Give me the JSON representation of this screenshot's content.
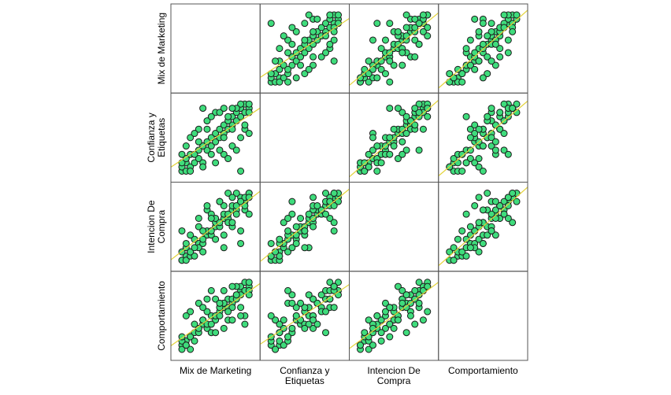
{
  "chart_data": {
    "type": "scatter",
    "subtype": "scatterplot-matrix",
    "title": "",
    "variables": [
      "Mix de Marketing",
      "Confianza y Etiquetas",
      "Intencion De Compra",
      "Comportamiento"
    ],
    "variable_label_lines": [
      [
        "Mix de Marketing"
      ],
      [
        "Confianza y",
        "Etiquetas"
      ],
      [
        "Intencion De",
        "Compra"
      ],
      [
        "Comportamiento"
      ]
    ],
    "range": [
      1,
      5
    ],
    "fit_line": "linear",
    "observations": [
      [
        1.0,
        1.0,
        1.0,
        1.25
      ],
      [
        1.0,
        1.25,
        1.0,
        1.0
      ],
      [
        1.25,
        1.0,
        1.25,
        1.5
      ],
      [
        1.25,
        1.5,
        1.0,
        1.25
      ],
      [
        1.5,
        1.25,
        1.5,
        1.0
      ],
      [
        1.5,
        1.0,
        1.25,
        1.75
      ],
      [
        1.0,
        1.5,
        1.5,
        1.5
      ],
      [
        1.75,
        1.5,
        1.25,
        2.0
      ],
      [
        1.25,
        1.75,
        1.75,
        1.25
      ],
      [
        1.5,
        2.0,
        1.5,
        1.75
      ],
      [
        2.0,
        1.75,
        2.0,
        2.25
      ],
      [
        2.0,
        2.25,
        1.75,
        2.0
      ],
      [
        1.75,
        2.0,
        2.25,
        1.5
      ],
      [
        2.25,
        1.5,
        2.0,
        2.5
      ],
      [
        2.5,
        2.25,
        2.5,
        2.25
      ],
      [
        2.25,
        2.5,
        2.25,
        2.75
      ],
      [
        2.5,
        2.75,
        2.75,
        2.5
      ],
      [
        2.75,
        2.5,
        2.5,
        3.0
      ],
      [
        3.0,
        2.75,
        3.0,
        2.75
      ],
      [
        2.75,
        3.0,
        2.75,
        2.5
      ],
      [
        3.0,
        3.25,
        3.25,
        3.0
      ],
      [
        3.25,
        3.0,
        3.0,
        3.25
      ],
      [
        3.5,
        3.25,
        3.5,
        3.5
      ],
      [
        3.25,
        3.5,
        3.25,
        3.0
      ],
      [
        3.5,
        3.75,
        3.75,
        3.75
      ],
      [
        3.75,
        3.5,
        3.5,
        4.0
      ],
      [
        4.0,
        3.75,
        4.0,
        3.75
      ],
      [
        3.75,
        4.0,
        3.75,
        3.5
      ],
      [
        4.0,
        4.25,
        4.25,
        4.0
      ],
      [
        4.25,
        4.0,
        4.0,
        4.25
      ],
      [
        4.5,
        4.25,
        4.5,
        4.5
      ],
      [
        4.25,
        4.5,
        4.25,
        4.0
      ],
      [
        4.5,
        4.75,
        4.75,
        4.75
      ],
      [
        4.75,
        4.5,
        4.5,
        5.0
      ],
      [
        5.0,
        4.75,
        5.0,
        4.75
      ],
      [
        4.75,
        5.0,
        4.75,
        4.5
      ],
      [
        5.0,
        5.0,
        5.0,
        5.0
      ],
      [
        4.5,
        5.0,
        4.5,
        4.25
      ],
      [
        5.0,
        4.5,
        4.75,
        4.5
      ],
      [
        4.25,
        4.75,
        5.0,
        4.75
      ],
      [
        3.0,
        4.5,
        3.5,
        4.0
      ],
      [
        2.5,
        4.0,
        4.0,
        3.25
      ],
      [
        4.0,
        2.5,
        3.0,
        3.5
      ],
      [
        3.5,
        2.0,
        2.5,
        3.75
      ],
      [
        2.0,
        3.5,
        3.0,
        2.25
      ],
      [
        1.5,
        3.0,
        2.5,
        3.25
      ],
      [
        3.75,
        1.75,
        3.25,
        2.75
      ],
      [
        4.5,
        3.0,
        2.75,
        3.5
      ],
      [
        2.75,
        4.25,
        3.75,
        2.0
      ],
      [
        3.25,
        4.5,
        4.5,
        3.5
      ],
      [
        1.25,
        2.5,
        2.0,
        3.0
      ],
      [
        2.25,
        1.25,
        1.5,
        2.75
      ],
      [
        4.75,
        3.5,
        4.0,
        3.0
      ],
      [
        3.5,
        4.75,
        4.25,
        4.5
      ],
      [
        2.0,
        2.75,
        3.5,
        3.75
      ],
      [
        4.25,
        2.25,
        3.75,
        4.25
      ],
      [
        1.75,
        3.25,
        1.75,
        2.5
      ],
      [
        3.0,
        1.5,
        2.25,
        2.0
      ],
      [
        4.0,
        4.75,
        3.25,
        4.75
      ],
      [
        2.5,
        3.5,
        4.25,
        4.0
      ],
      [
        4.75,
        3.75,
        4.25,
        2.5
      ],
      [
        3.75,
        4.25,
        5.0,
        3.25
      ],
      [
        2.75,
        2.0,
        3.5,
        4.5
      ],
      [
        1.0,
        2.0,
        2.75,
        1.75
      ],
      [
        4.5,
        1.0,
        2.0,
        3.0
      ],
      [
        3.25,
        2.25,
        4.5,
        3.75
      ],
      [
        5.0,
        3.25,
        3.75,
        4.25
      ],
      [
        2.25,
        4.75,
        2.75,
        3.5
      ],
      [
        3.5,
        3.0,
        1.75,
        2.25
      ],
      [
        4.0,
        3.5,
        4.75,
        2.75
      ]
    ]
  },
  "colors": {
    "point_fill": "#3fdc7c",
    "point_stroke": "#1a1a1a",
    "fit_line": "#e3d33a",
    "frame": "#000000"
  }
}
